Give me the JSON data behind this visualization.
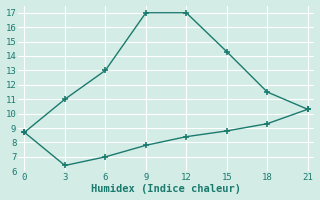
{
  "line1_x": [
    0,
    3,
    6,
    9,
    12,
    15,
    18,
    21
  ],
  "line1_y": [
    8.7,
    11.0,
    13.0,
    17.0,
    17.0,
    14.3,
    11.5,
    10.3
  ],
  "line2_x": [
    0,
    3,
    6,
    9,
    12,
    15,
    18,
    21
  ],
  "line2_y": [
    8.7,
    6.4,
    7.0,
    7.8,
    8.4,
    8.8,
    9.3,
    10.3
  ],
  "line_color": "#1a7a6e",
  "background_color": "#d4ece6",
  "grid_color": "#b8d8d0",
  "xlabel": "Humidex (Indice chaleur)",
  "xlim": [
    -0.5,
    21.5
  ],
  "ylim": [
    6,
    17.5
  ],
  "xticks": [
    0,
    3,
    6,
    9,
    12,
    15,
    18,
    21
  ],
  "yticks": [
    6,
    7,
    8,
    9,
    10,
    11,
    12,
    13,
    14,
    15,
    16,
    17
  ],
  "tick_fontsize": 6.5,
  "xlabel_fontsize": 7.5,
  "marker": "+",
  "marker_size": 5,
  "linewidth": 1.0
}
